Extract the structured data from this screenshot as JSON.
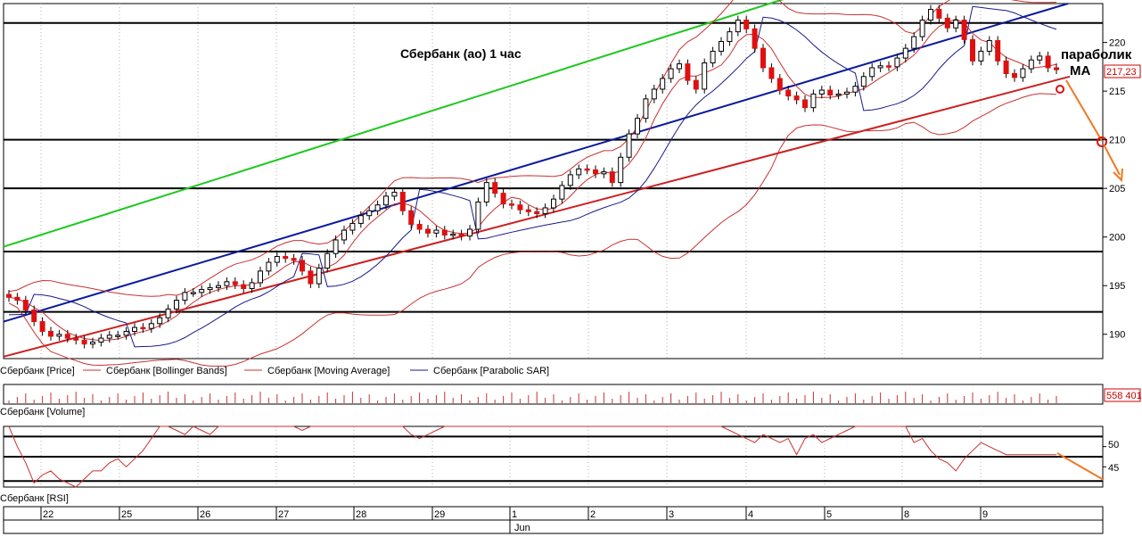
{
  "chart_data": {
    "type": "candlestick",
    "title": "Сбербанк (ао)   1 час",
    "annotation": [
      "параболик",
      "MA"
    ],
    "ylim": [
      187.5,
      224
    ],
    "y_ticks": [
      190,
      195,
      200,
      205,
      210,
      215,
      220
    ],
    "last_price_label": "217,23",
    "x_labels": [
      "22",
      "25",
      "26",
      "27",
      "28",
      "29",
      "1",
      "2",
      "3",
      "4",
      "5",
      "8",
      "9"
    ],
    "month_label": "Jun",
    "price_legend": [
      "Сбербанк [Price]",
      "Сбербанк [Bollinger Bands]",
      "Сбербанк [Moving Average]",
      "Сбербанк [Parabolic SAR]"
    ],
    "volume_label": "Сбербанк [Volume]",
    "volume_value": "558 401",
    "rsi_label": "Сбербанк [RSI]",
    "rsi_ticks": [
      45,
      50
    ],
    "horizontal_levels": [
      192.3,
      198.5,
      205,
      210,
      222
    ],
    "channel_lines": [
      {
        "name": "upper-channel",
        "color": "#1ec81e",
        "y_start": 199,
        "y_end": 225.5
      },
      {
        "name": "middle-channel",
        "color": "#0a1a9c",
        "y_start": 191.3,
        "y_end": 224
      },
      {
        "name": "lower-channel",
        "color": "#cc2020",
        "y_start": 187.7,
        "y_end": 216.5
      }
    ],
    "closes": [
      193.8,
      193.5,
      192.5,
      191.3,
      190.3,
      189.8,
      190.0,
      189.6,
      189.4,
      189.0,
      189.2,
      189.6,
      189.9,
      189.9,
      190.3,
      190.7,
      190.6,
      191.1,
      191.7,
      192.6,
      193.5,
      194.3,
      194.3,
      194.6,
      194.8,
      195.0,
      195.4,
      195.1,
      194.7,
      195.3,
      196.5,
      197.4,
      198.0,
      197.8,
      197.6,
      196.5,
      195.2,
      196.8,
      198.3,
      199.7,
      200.7,
      201.4,
      202.2,
      202.7,
      203.3,
      204.2,
      204.6,
      202.7,
      201.3,
      200.8,
      200.4,
      200.7,
      200.2,
      200.3,
      200.1,
      200.8,
      203.6,
      205.6,
      204.5,
      203.4,
      203.3,
      202.8,
      202.6,
      202.4,
      203.0,
      203.9,
      205.3,
      206.4,
      207.0,
      206.9,
      206.5,
      206.7,
      205.6,
      208.2,
      210.6,
      212.2,
      214.2,
      215.2,
      216.3,
      217.3,
      217.8,
      216.1,
      215.2,
      217.9,
      219.1,
      220.1,
      221.1,
      222.3,
      221.4,
      219.4,
      217.4,
      216.3,
      215.1,
      214.5,
      214.1,
      213.3,
      214.7,
      215.1,
      214.6,
      214.7,
      214.9,
      215.5,
      216.5,
      217.4,
      217.6,
      217.5,
      218.4,
      219.4,
      220.6,
      222.3,
      223.4,
      222.5,
      221.5,
      222.3,
      220.3,
      218.1,
      219.1,
      220.2,
      218.1,
      216.8,
      216.4,
      217.3,
      218.2,
      218.6,
      217.4,
      217.2
    ],
    "rsi_values": [
      57,
      50,
      46,
      41,
      43,
      44,
      42,
      41,
      40,
      42,
      44,
      44,
      46,
      47,
      45,
      47,
      49,
      52,
      58,
      56,
      54,
      53,
      55,
      54,
      53,
      55,
      57,
      58,
      56,
      58,
      60,
      61,
      62,
      59,
      56,
      54,
      55,
      57,
      60,
      62,
      63,
      61,
      60,
      59,
      61,
      63,
      62,
      55,
      53,
      52,
      53,
      54,
      55,
      56,
      57,
      58,
      57,
      59,
      58,
      57,
      58,
      59,
      57,
      58,
      59,
      60,
      61,
      62,
      60,
      61,
      62,
      63,
      64,
      65,
      66,
      65,
      64,
      63,
      62,
      61,
      60,
      59,
      58,
      57,
      56,
      55,
      54,
      53,
      52,
      51,
      53,
      52,
      51,
      52,
      48,
      52,
      53,
      51,
      52,
      53,
      54,
      55,
      56,
      57,
      58,
      57,
      56,
      55,
      51,
      52,
      49,
      47,
      46,
      44,
      47,
      49,
      51,
      50,
      49,
      48,
      48,
      48,
      48,
      48,
      48,
      48
    ],
    "colors": {
      "price_up": "#ffffff",
      "price_down": "#e01010",
      "bollinger": "#c83232",
      "moving_average": "#c83232",
      "parabolic_sar": "#1a1a8c",
      "forecast": "#f07820",
      "rsi": "#c83232"
    }
  }
}
